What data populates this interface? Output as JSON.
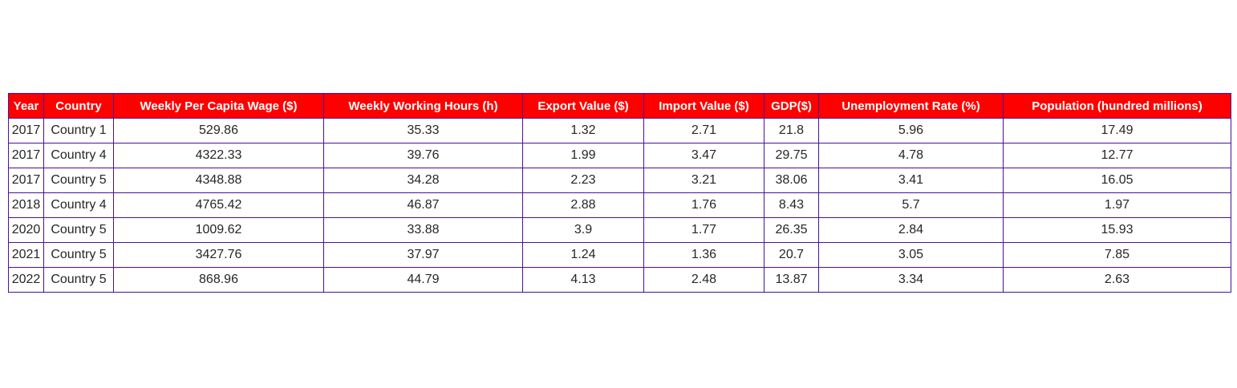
{
  "chart_data": {
    "type": "table",
    "columns": [
      "Year",
      "Country",
      "Weekly Per Capita Wage ($)",
      "Weekly Working Hours (h)",
      "Export Value ($)",
      "Import Value ($)",
      "GDP($)",
      "Unemployment Rate (%)",
      "Population (hundred millions)"
    ],
    "rows": [
      [
        "2017",
        "Country 1",
        "529.86",
        "35.33",
        "1.32",
        "2.71",
        "21.8",
        "5.96",
        "17.49"
      ],
      [
        "2017",
        "Country 4",
        "4322.33",
        "39.76",
        "1.99",
        "3.47",
        "29.75",
        "4.78",
        "12.77"
      ],
      [
        "2017",
        "Country 5",
        "4348.88",
        "34.28",
        "2.23",
        "3.21",
        "38.06",
        "3.41",
        "16.05"
      ],
      [
        "2018",
        "Country 4",
        "4765.42",
        "46.87",
        "2.88",
        "1.76",
        "8.43",
        "5.7",
        "1.97"
      ],
      [
        "2020",
        "Country 5",
        "1009.62",
        "33.88",
        "3.9",
        "1.77",
        "26.35",
        "2.84",
        "15.93"
      ],
      [
        "2021",
        "Country 5",
        "3427.76",
        "37.97",
        "1.24",
        "1.36",
        "20.7",
        "3.05",
        "7.85"
      ],
      [
        "2022",
        "Country 5",
        "868.96",
        "44.79",
        "4.13",
        "2.48",
        "13.87",
        "3.34",
        "2.63"
      ]
    ],
    "header_bg": "#ff0000",
    "header_text": "#ffffff",
    "border_color": "#4b0f9b"
  }
}
